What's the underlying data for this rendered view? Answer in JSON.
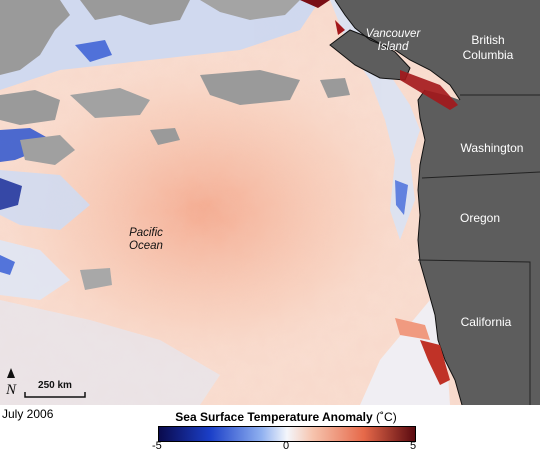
{
  "map": {
    "places": {
      "vancouver_island": [
        "Vancouver",
        "Island"
      ],
      "british_columbia": [
        "British",
        "Columbia"
      ],
      "washington": "Washington",
      "oregon": "Oregon",
      "california": "California",
      "pacific_ocean": [
        "Pacific",
        "Ocean"
      ]
    },
    "compass": "N",
    "scale_bar": "250 km",
    "colors": {
      "land": "#5d5d5d",
      "no_data": "#9a9a9a",
      "cold_anomaly": "#1b3fc8",
      "warm_anomaly": "#e6694a"
    }
  },
  "footer": {
    "date": "July 2006",
    "legend": {
      "title": "Sea Surface Temperature Anomaly",
      "unit": "(˚C)",
      "ticks": [
        "-5",
        "0",
        "5"
      ],
      "min": -5,
      "max": 5
    }
  }
}
